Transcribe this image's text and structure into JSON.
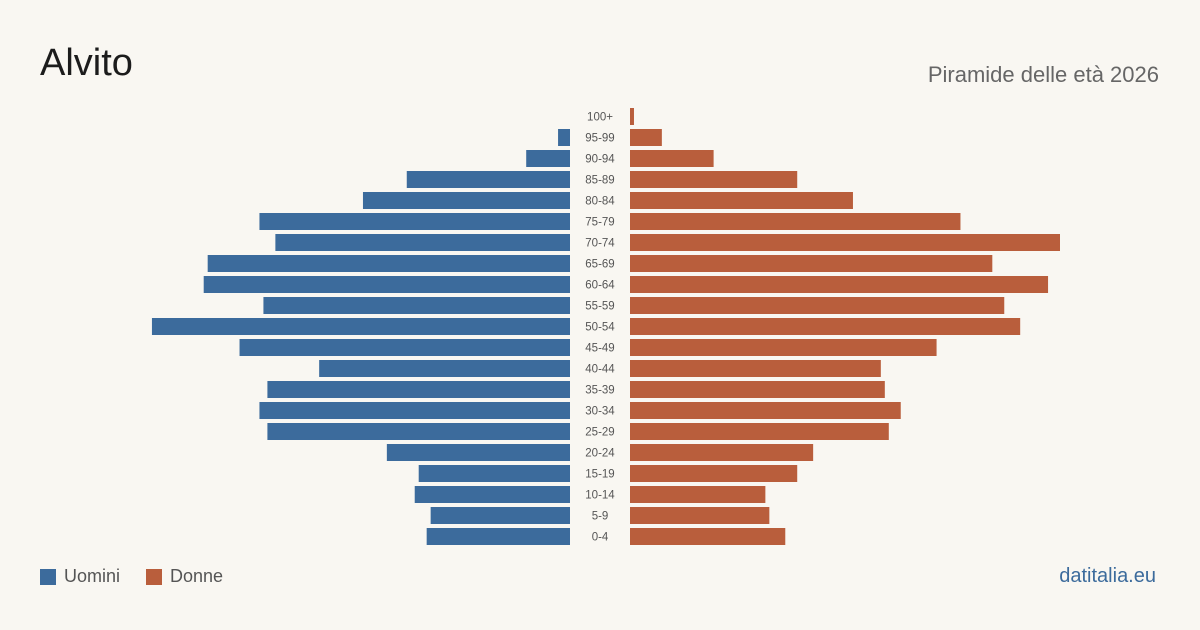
{
  "header": {
    "title": "Alvito",
    "subtitle": "Piramide delle età 2026"
  },
  "legend": {
    "items": [
      {
        "label": "Uomini",
        "color": "#3c6b9c"
      },
      {
        "label": "Donne",
        "color": "#b95e3c"
      }
    ]
  },
  "footer": {
    "brand": "datitalia.eu"
  },
  "chart_data": {
    "type": "bar",
    "orientation": "horizontal",
    "subtype": "population-pyramid",
    "categories": [
      "100+",
      "95-99",
      "90-94",
      "85-89",
      "80-84",
      "75-79",
      "70-74",
      "65-69",
      "60-64",
      "55-59",
      "50-54",
      "45-49",
      "40-44",
      "35-39",
      "30-34",
      "25-29",
      "20-24",
      "15-19",
      "10-14",
      "5-9",
      "0-4"
    ],
    "series": [
      {
        "name": "Uomini",
        "color": "#3c6b9c",
        "values": [
          0,
          3,
          11,
          41,
          52,
          78,
          74,
          91,
          92,
          77,
          105,
          83,
          63,
          76,
          78,
          76,
          46,
          38,
          39,
          35,
          36
        ]
      },
      {
        "name": "Donne",
        "color": "#b95e3c",
        "values": [
          1,
          8,
          21,
          42,
          56,
          83,
          108,
          91,
          105,
          94,
          98,
          77,
          63,
          64,
          68,
          65,
          46,
          42,
          34,
          35,
          39
        ]
      }
    ],
    "xmax": 108,
    "grid": false,
    "legend_position": "bottom-left"
  }
}
